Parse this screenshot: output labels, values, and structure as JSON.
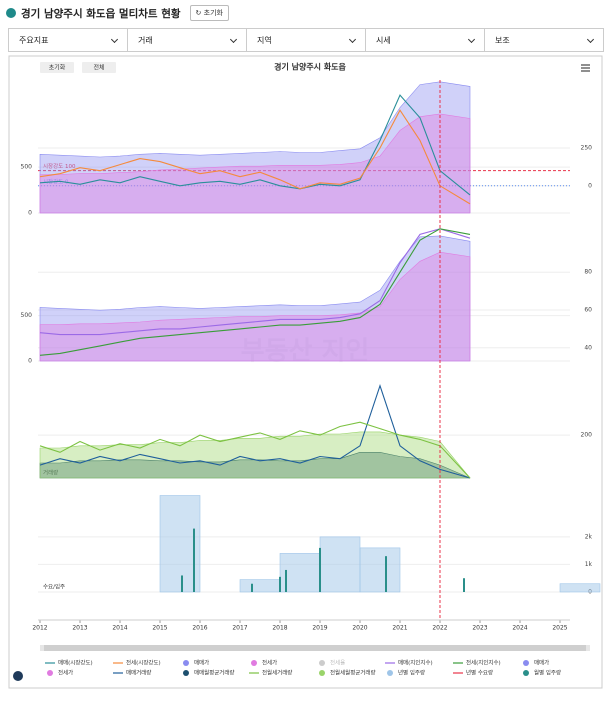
{
  "header": {
    "title": "경기 남양주시 화도읍 멀티차트 현황",
    "reset": "초기화"
  },
  "filters": [
    "주요지표",
    "거래",
    "지역",
    "시세",
    "보조"
  ],
  "toolbar": {
    "reset": "초기화",
    "all": "전체",
    "title": "경기 남양주시 화도읍"
  },
  "watermark": "부동산 지인",
  "marker": {
    "x": 2022,
    "color": "#e8334a"
  },
  "chart_data": [
    {
      "type": "line",
      "xlim": [
        2012,
        2025.25
      ],
      "x": [
        2012,
        2012.5,
        2013,
        2013.5,
        2014,
        2014.5,
        2015,
        2015.5,
        2016,
        2016.5,
        2017,
        2017.5,
        2018,
        2018.5,
        2019,
        2019.5,
        2020,
        2020.5,
        2021,
        2021.5,
        2022,
        2022.75
      ],
      "ylim": [
        0,
        1450
      ],
      "yticks": [
        0,
        500
      ],
      "y2lim": [
        -180,
        700
      ],
      "y2ticks": [
        0,
        250
      ],
      "annotations": [
        {
          "text": "시장강도 100",
          "y": 100,
          "axis": "y2",
          "color": "#e8334a",
          "style": "dashed"
        },
        {
          "text": "시장강도 0",
          "y": 0,
          "axis": "y2",
          "color": "#5b8def",
          "style": "dotted"
        }
      ],
      "series": [
        {
          "name": "매매(시장강도)",
          "kind": "line",
          "axis": "y2",
          "color": "#2a8f9a",
          "values": [
            20,
            30,
            10,
            40,
            20,
            60,
            30,
            0,
            20,
            30,
            10,
            40,
            0,
            -20,
            10,
            0,
            40,
            300,
            600,
            450,
            100,
            -60
          ]
        },
        {
          "name": "전세(시장강도)",
          "kind": "line",
          "axis": "y2",
          "color": "#f58a3c",
          "values": [
            60,
            80,
            120,
            100,
            140,
            180,
            160,
            120,
            80,
            100,
            60,
            90,
            40,
            -20,
            20,
            10,
            50,
            250,
            500,
            300,
            0,
            -120
          ]
        },
        {
          "name": "매매가",
          "kind": "area",
          "color": "#8a8cf0",
          "values": [
            640,
            630,
            620,
            610,
            620,
            640,
            650,
            640,
            630,
            640,
            650,
            660,
            670,
            660,
            660,
            680,
            700,
            820,
            1150,
            1400,
            1430,
            1380
          ]
        },
        {
          "name": "전세가",
          "kind": "area",
          "color": "#e07be0",
          "values": [
            420,
            420,
            430,
            430,
            440,
            450,
            470,
            480,
            490,
            500,
            510,
            510,
            520,
            520,
            520,
            530,
            550,
            620,
            900,
            1050,
            1080,
            1030
          ]
        },
        {
          "name": "전세율",
          "kind": "area",
          "color": "#cccccc",
          "visible": false
        }
      ]
    },
    {
      "type": "line",
      "xlim": [
        2012,
        2025.25
      ],
      "x": [
        2012,
        2012.5,
        2013,
        2013.5,
        2014,
        2014.5,
        2015,
        2015.5,
        2016,
        2016.5,
        2017,
        2017.5,
        2018,
        2018.5,
        2019,
        2019.5,
        2020,
        2020.5,
        2021,
        2021.5,
        2022,
        2022.75
      ],
      "ylim": [
        0,
        1500
      ],
      "yticks": [
        0,
        500
      ],
      "y2lim": [
        33,
        105
      ],
      "y2ticks": [
        40,
        60,
        80
      ],
      "series": [
        {
          "name": "매매(지인지수)",
          "kind": "line",
          "axis": "y2",
          "color": "#9b6ae6",
          "values": [
            48,
            47,
            47,
            47,
            48,
            49,
            50,
            50,
            51,
            52,
            53,
            54,
            55,
            55,
            55,
            56,
            58,
            65,
            85,
            100,
            103,
            98
          ]
        },
        {
          "name": "전세(지인지수)",
          "kind": "line",
          "axis": "y2",
          "color": "#3a9d3a",
          "values": [
            36,
            37,
            39,
            41,
            43,
            45,
            46,
            47,
            48,
            49,
            50,
            51,
            52,
            52,
            53,
            54,
            56,
            63,
            80,
            97,
            103,
            100
          ]
        },
        {
          "name": "매매가",
          "kind": "area",
          "color": "#8a8cf0",
          "values": [
            590,
            580,
            570,
            560,
            570,
            590,
            600,
            590,
            580,
            590,
            600,
            610,
            620,
            610,
            610,
            630,
            650,
            780,
            1100,
            1370,
            1380,
            1320
          ]
        },
        {
          "name": "전세가",
          "kind": "area",
          "color": "#e07be0",
          "values": [
            400,
            400,
            410,
            410,
            420,
            430,
            450,
            460,
            470,
            480,
            490,
            490,
            500,
            500,
            500,
            510,
            530,
            600,
            900,
            1100,
            1200,
            1150
          ]
        }
      ]
    },
    {
      "type": "line",
      "xlim": [
        2012,
        2025.25
      ],
      "axis_label": "거래량",
      "x": [
        2012,
        2012.5,
        2013,
        2013.5,
        2014,
        2014.5,
        2015,
        2015.5,
        2016,
        2016.5,
        2017,
        2017.5,
        2018,
        2018.5,
        2019,
        2019.5,
        2020,
        2020.5,
        2021,
        2021.5,
        2022,
        2022.75
      ],
      "ylim": [
        0,
        480
      ],
      "yticks": [
        200
      ],
      "yaxis": "right",
      "series": [
        {
          "name": "매매거래량",
          "kind": "line",
          "color": "#1f5f9b",
          "values": [
            60,
            90,
            70,
            100,
            80,
            110,
            90,
            70,
            80,
            60,
            100,
            80,
            90,
            70,
            100,
            90,
            150,
            430,
            150,
            80,
            40,
            0
          ]
        },
        {
          "name": "매매월평균거래량",
          "kind": "area",
          "color": "#1d4f6e",
          "values": [
            70,
            70,
            80,
            80,
            85,
            85,
            80,
            80,
            75,
            75,
            85,
            85,
            80,
            80,
            90,
            90,
            120,
            120,
            100,
            90,
            60,
            0
          ]
        },
        {
          "name": "전월세거래량",
          "kind": "line",
          "color": "#7cc242",
          "values": [
            150,
            120,
            170,
            130,
            160,
            140,
            180,
            150,
            200,
            170,
            190,
            210,
            180,
            220,
            200,
            240,
            260,
            230,
            200,
            180,
            150,
            0
          ]
        },
        {
          "name": "전월세월평균거래량",
          "kind": "area",
          "color": "#9ad46a",
          "values": [
            140,
            140,
            150,
            150,
            155,
            155,
            165,
            165,
            175,
            175,
            185,
            185,
            195,
            195,
            205,
            205,
            215,
            215,
            200,
            190,
            170,
            0
          ]
        }
      ]
    },
    {
      "type": "bar",
      "xlim": [
        2012,
        2025.25
      ],
      "axis_label": "수요/입주",
      "xticks": [
        2012,
        2013,
        2014,
        2015,
        2016,
        2017,
        2018,
        2019,
        2020,
        2021,
        2022,
        2023,
        2024,
        2025
      ],
      "ylim": [
        0,
        3700
      ],
      "yticks": [
        0,
        {
          "value": 1000,
          "label": "1k"
        },
        {
          "value": 2000,
          "label": "2k"
        }
      ],
      "yaxis": "right",
      "series": [
        {
          "name": "년별 입주량",
          "kind": "step",
          "color": "#9fc5e8",
          "x": [
            2012,
            2013,
            2014,
            2015,
            2016,
            2017,
            2018,
            2019,
            2020,
            2021,
            2022,
            2023,
            2024,
            2025
          ],
          "values": [
            0,
            0,
            0,
            3500,
            0,
            450,
            1400,
            2000,
            1600,
            0,
            0,
            0,
            0,
            300
          ]
        },
        {
          "name": "년별 수요량",
          "kind": "line",
          "color": "#e8334a"
        },
        {
          "name": "월별 입주량",
          "kind": "bar",
          "color": "#2a8f8a",
          "x": [
            2015.55,
            2015.85,
            2017.3,
            2018.0,
            2018.15,
            2019.0,
            2020.65,
            2022.6
          ],
          "values": [
            600,
            2300,
            300,
            550,
            800,
            1600,
            1300,
            500
          ]
        }
      ]
    }
  ]
}
